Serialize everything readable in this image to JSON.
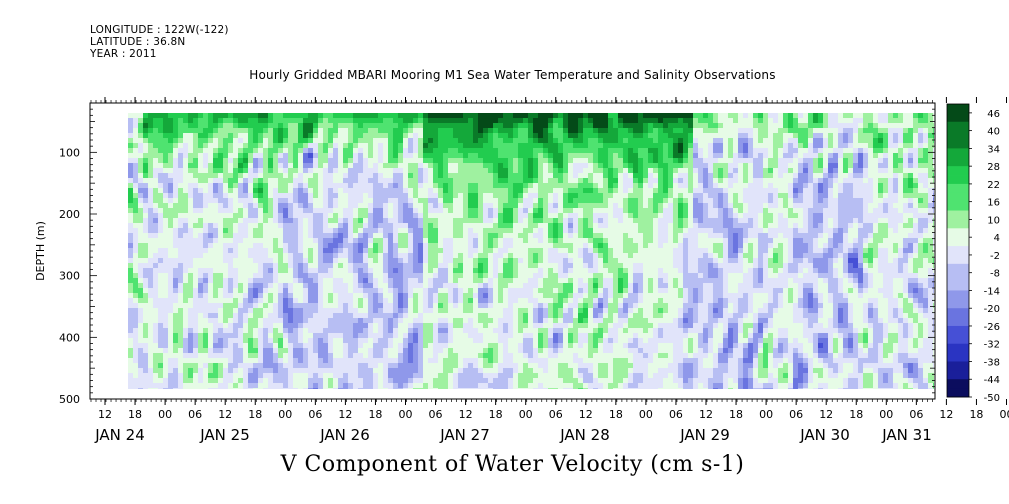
{
  "header": {
    "longitude": "LONGITUDE : 122W(-122)",
    "latitude": "LATITUDE : 36.8N",
    "year": "YEAR : 2011"
  },
  "chart_data": {
    "type": "heatmap",
    "title": "Hourly Gridded MBARI Mooring M1 Sea Water Temperature and Salinity Observations",
    "xlabel": "V Component of Water Velocity (cm s-1)",
    "ylabel": "DEPTH (m)",
    "ylim": [
      500,
      20
    ],
    "yticks": [
      100,
      200,
      300,
      400,
      500
    ],
    "xlim_hours": [
      0,
      7.5
    ],
    "hour_tick_labels": [
      "12",
      "18",
      "00",
      "06",
      "12",
      "18",
      "00",
      "06",
      "12",
      "18",
      "00",
      "06",
      "12",
      "18",
      "00",
      "06",
      "12",
      "18",
      "00",
      "06",
      "12",
      "18",
      "00",
      "06",
      "12",
      "18",
      "00",
      "06",
      "12",
      "18",
      "00",
      "06"
    ],
    "day_labels": [
      "JAN 24",
      "JAN 25",
      "JAN 26",
      "JAN 27",
      "JAN 28",
      "JAN 29",
      "JAN 30",
      "JAN 31"
    ],
    "data_start": "JAN 23 15:00",
    "data_end": "JAN 31 09:00",
    "colorbar": {
      "labels": [
        "46",
        "40",
        "34",
        "28",
        "22",
        "16",
        "10",
        "4",
        "-2",
        "-8",
        "-14",
        "-20",
        "-26",
        "-32",
        "-38",
        "-44",
        "-50"
      ],
      "range": [
        -50,
        49
      ],
      "pos_colors": [
        "#e6fbe6",
        "#9ff1a0",
        "#4fe370",
        "#22cc4f",
        "#14a83a",
        "#0a7a28",
        "#044a18"
      ],
      "neg_colors": [
        "#e1e4fa",
        "#b7bef3",
        "#8f98ea",
        "#6a74e0",
        "#4650d6",
        "#2a34c2",
        "#1a1f9a",
        "#0b0d5e"
      ]
    },
    "grid": false,
    "legend": "right"
  }
}
